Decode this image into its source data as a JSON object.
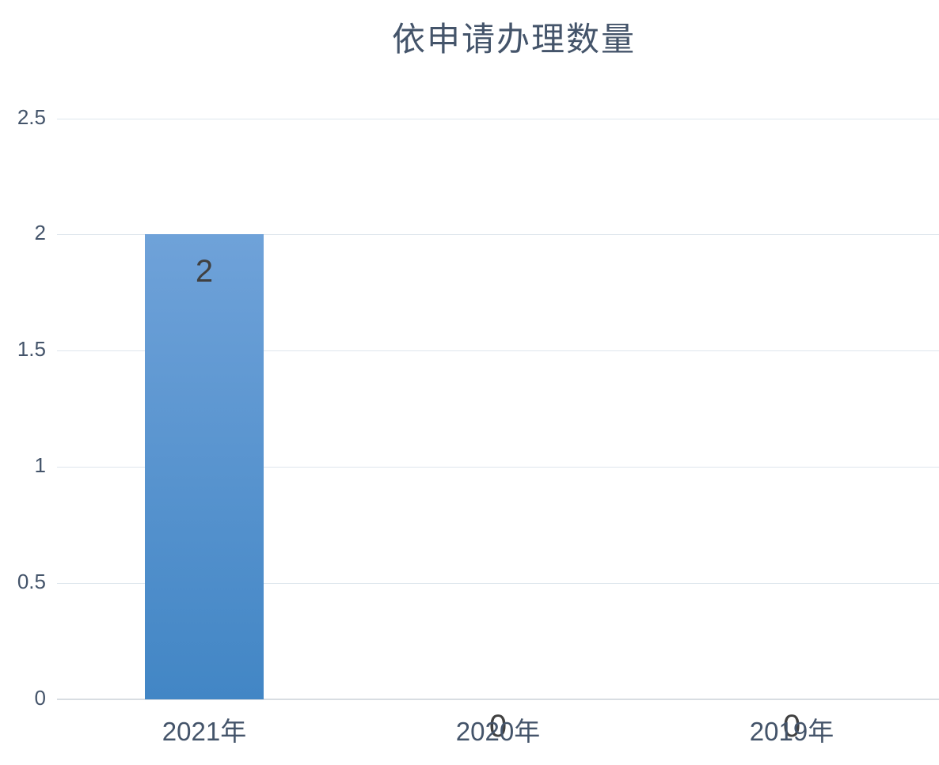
{
  "chart_data": {
    "type": "bar",
    "title": "依申请办理数量",
    "categories": [
      "2021年",
      "2020年",
      "2019年"
    ],
    "series": [
      {
        "name": "依申请办理数量",
        "values": [
          2,
          0,
          0
        ]
      }
    ],
    "values": [
      2,
      0,
      0
    ],
    "data_labels": [
      "2",
      "0",
      "0"
    ],
    "xlabel": "",
    "ylabel": "",
    "ylim": [
      0,
      2.5
    ],
    "yticks": [
      0,
      0.5,
      1,
      1.5,
      2,
      2.5
    ],
    "ytick_labels": [
      "0",
      "0.5",
      "1",
      "1.5",
      "2",
      "2.5"
    ],
    "grid": "horizontal",
    "legend": "none",
    "data_label_position": "inside-end",
    "colors": {
      "bar_gradient_top": "#6FA2D9",
      "bar_gradient_bottom": "#4286C5",
      "gridline": "#DEE6ED",
      "axis_line": "#D8DDE2",
      "tick_label": "#44546A",
      "title": "#44546A",
      "data_label": "#404040",
      "background": "#FFFFFF"
    }
  }
}
